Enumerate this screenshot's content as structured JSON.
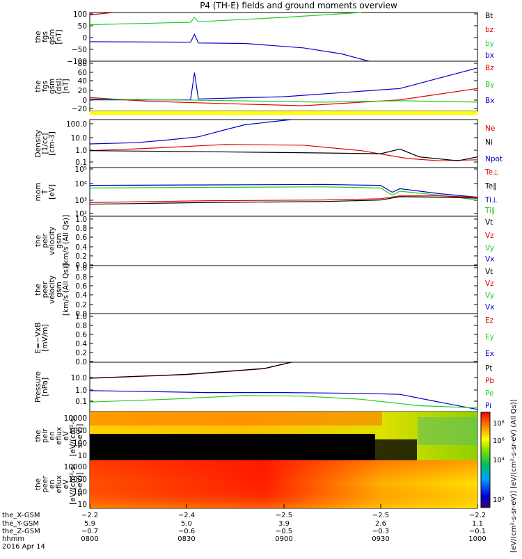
{
  "title": "P4 (TH-E) fields and ground moments overview",
  "colors": {
    "black": "#000000",
    "red": "#dd0000",
    "green": "#22cc22",
    "blue": "#0000cc",
    "yellow": "#ffff00"
  },
  "chart_data": [
    {
      "type": "line",
      "ylabel": [
        "the",
        "fgs",
        "gsm",
        "[nT]"
      ],
      "ylim": [
        -100,
        100
      ],
      "ticks": [
        "100",
        "50",
        "0",
        "−50",
        "−100"
      ],
      "legend": [
        {
          "name": "Bt",
          "color": "#000000"
        },
        {
          "name": "bz",
          "color": "#dd0000"
        },
        {
          "name": "by",
          "color": "#22cc22"
        },
        {
          "name": "bx",
          "color": "#0000cc"
        }
      ],
      "series": [
        {
          "name": "bz",
          "color": "#dd0000",
          "x": [
            0,
            0.06
          ],
          "y": [
            90,
            100
          ]
        },
        {
          "name": "by",
          "color": "#22cc22",
          "x": [
            0,
            0.26,
            0.27,
            0.28,
            0.5,
            0.7
          ],
          "y": [
            50,
            60,
            80,
            62,
            80,
            100
          ]
        },
        {
          "name": "bx",
          "color": "#0000cc",
          "x": [
            0,
            0.26,
            0.27,
            0.28,
            0.4,
            0.55,
            0.65,
            0.72
          ],
          "y": [
            -20,
            -22,
            10,
            -25,
            -27,
            -45,
            -70,
            -100
          ]
        }
      ]
    },
    {
      "type": "line",
      "ylabel": [
        "the",
        "fgs",
        "gsm",
        "(dsl)",
        "[nT]"
      ],
      "ylim": [
        -30,
        80
      ],
      "ticks": [
        "80",
        "60",
        "40",
        "20",
        "0",
        "−20"
      ],
      "legend": [
        {
          "name": "Bz",
          "color": "#dd0000"
        },
        {
          "name": "By",
          "color": "#22cc22"
        },
        {
          "name": "Bx",
          "color": "#0000cc"
        }
      ],
      "series": [
        {
          "name": "Bx",
          "color": "#0000cc",
          "x": [
            0,
            0.26,
            0.27,
            0.28,
            0.5,
            0.8,
            1.0
          ],
          "y": [
            -5,
            -5,
            55,
            -3,
            2,
            20,
            65
          ]
        },
        {
          "name": "Bz",
          "color": "#dd0000",
          "x": [
            0,
            0.15,
            0.3,
            0.55,
            0.8,
            1.0
          ],
          "y": [
            0,
            -8,
            -12,
            -18,
            -5,
            20
          ]
        },
        {
          "name": "By",
          "color": "#22cc22",
          "x": [
            0,
            0.3,
            0.6,
            0.8,
            1.0
          ],
          "y": [
            -3,
            -6,
            -10,
            -7,
            -10
          ]
        }
      ]
    },
    {
      "type": "line",
      "ylabel": [
        "Density",
        "[1/cc]",
        "[cm-3]"
      ],
      "scale": "log",
      "ylim": [
        0.03,
        150
      ],
      "ticks": [
        "100.0",
        "10.0",
        "1.0",
        "0.1"
      ],
      "legend": [
        {
          "name": "Ne",
          "color": "#dd0000"
        },
        {
          "name": "Ni",
          "color": "#000000"
        },
        {
          "name": "Npot",
          "color": "#0000cc"
        }
      ],
      "series": [
        {
          "name": "Npot",
          "color": "#0000cc",
          "x": [
            0,
            0.12,
            0.2,
            0.28,
            0.35,
            0.4,
            0.52
          ],
          "y": [
            2,
            2.5,
            4,
            7,
            25,
            60,
            150
          ]
        },
        {
          "name": "Ne",
          "color": "#dd0000",
          "x": [
            0,
            0.15,
            0.35,
            0.55,
            0.7,
            0.82,
            0.9,
            1.0
          ],
          "y": [
            0.6,
            0.9,
            1.8,
            1.6,
            0.6,
            0.15,
            0.1,
            0.12
          ]
        },
        {
          "name": "Ni",
          "color": "#000000",
          "x": [
            0,
            0.3,
            0.6,
            0.75,
            0.8,
            0.85,
            0.95,
            1.0
          ],
          "y": [
            0.6,
            0.5,
            0.4,
            0.35,
            0.8,
            0.2,
            0.1,
            0.2
          ]
        }
      ]
    },
    {
      "type": "line",
      "ylabel": [
        "mom",
        "T",
        "[eV]"
      ],
      "scale": "log",
      "ylim": [
        100,
        100000
      ],
      "ticks": [
        "10⁵",
        "10⁴",
        "10³",
        "10²"
      ],
      "legend": [
        {
          "name": "Te⊥",
          "color": "#dd0000"
        },
        {
          "name": "Te∥",
          "color": "#000000"
        },
        {
          "name": "Ti⊥",
          "color": "#0000cc"
        },
        {
          "name": "Ti∥",
          "color": "#22cc22"
        }
      ],
      "series": [
        {
          "name": "Ti⊥",
          "color": "#0000cc",
          "x": [
            0,
            0.3,
            0.6,
            0.75,
            0.78,
            0.8,
            0.9,
            1.0
          ],
          "y": [
            8000,
            8500,
            9000,
            8000,
            3000,
            5000,
            2500,
            1500
          ]
        },
        {
          "name": "Ti∥",
          "color": "#22cc22",
          "x": [
            0,
            0.3,
            0.6,
            0.75,
            0.78,
            0.8,
            0.9,
            1.0
          ],
          "y": [
            5500,
            6000,
            6500,
            5500,
            2000,
            3500,
            2000,
            1000
          ]
        },
        {
          "name": "Te⊥",
          "color": "#dd0000",
          "x": [
            0,
            0.3,
            0.6,
            0.75,
            0.8,
            0.9,
            1.0
          ],
          "y": [
            700,
            900,
            1000,
            1200,
            1800,
            1800,
            1500
          ]
        },
        {
          "name": "Te∥",
          "color": "#000000",
          "x": [
            0,
            0.3,
            0.6,
            0.75,
            0.8,
            0.9,
            1.0
          ],
          "y": [
            550,
            700,
            800,
            1000,
            1600,
            1500,
            1300
          ]
        }
      ]
    },
    {
      "type": "line",
      "ylabel": [
        "the",
        "peir",
        "velocity",
        "gsm",
        "[km/s (All Qs)]"
      ],
      "ylim": [
        0,
        1
      ],
      "ticks": [
        "1.0",
        "0.8",
        "0.6",
        "0.4",
        "0.2",
        "0.0"
      ],
      "legend": [
        {
          "name": "Vt",
          "color": "#000000"
        },
        {
          "name": "Vz",
          "color": "#dd0000"
        },
        {
          "name": "Vy",
          "color": "#22cc22"
        },
        {
          "name": "Vx",
          "color": "#0000cc"
        }
      ],
      "series": []
    },
    {
      "type": "line",
      "ylabel": [
        "the",
        "peer",
        "velocity",
        "gsm",
        "[km/s (All Qs)]"
      ],
      "ylim": [
        0,
        1
      ],
      "ticks": [
        "1.0",
        "0.8",
        "0.6",
        "0.4",
        "0.2",
        "0.0"
      ],
      "legend": [
        {
          "name": "Vt",
          "color": "#000000"
        },
        {
          "name": "Vz",
          "color": "#dd0000"
        },
        {
          "name": "Vy",
          "color": "#22cc22"
        },
        {
          "name": "Vx",
          "color": "#0000cc"
        }
      ],
      "series": []
    },
    {
      "type": "line",
      "ylabel": [
        "E=−VxB",
        "[mV/m]"
      ],
      "ylim": [
        0,
        1
      ],
      "ticks": [
        "1.0",
        "0.8",
        "0.6",
        "0.4",
        "0.2",
        "0.0"
      ],
      "legend": [
        {
          "name": "Ez",
          "color": "#dd0000"
        },
        {
          "name": "Ey",
          "color": "#22cc22"
        },
        {
          "name": "Ex",
          "color": "#0000cc"
        }
      ],
      "series": []
    },
    {
      "type": "line",
      "ylabel": [
        "Pressure",
        "[nPa]"
      ],
      "scale": "log",
      "ylim": [
        0.01,
        100
      ],
      "ticks": [
        "10.0",
        "1.0",
        "0.1"
      ],
      "legend": [
        {
          "name": "Pt",
          "color": "#000000"
        },
        {
          "name": "Pb",
          "color": "#dd0000"
        },
        {
          "name": "Pe",
          "color": "#22cc22"
        },
        {
          "name": "Pi",
          "color": "#0000cc"
        }
      ],
      "series": [
        {
          "name": "Pb",
          "color": "#dd0000",
          "x": [
            0,
            0.25,
            0.45,
            0.52
          ],
          "y": [
            5,
            10,
            30,
            100
          ]
        },
        {
          "name": "Pt",
          "color": "#000000",
          "x": [
            0,
            0.25,
            0.45,
            0.52
          ],
          "y": [
            5.2,
            10.5,
            31,
            100
          ]
        },
        {
          "name": "Pi",
          "color": "#0000cc",
          "x": [
            0,
            0.1,
            0.3,
            0.5,
            0.7,
            0.8,
            0.88,
            1.0
          ],
          "y": [
            0.5,
            0.45,
            0.35,
            0.35,
            0.3,
            0.25,
            0.08,
            0.015
          ]
        },
        {
          "name": "Pe",
          "color": "#22cc22",
          "x": [
            0,
            0.2,
            0.4,
            0.55,
            0.7,
            0.85,
            1.0
          ],
          "y": [
            0.06,
            0.1,
            0.2,
            0.18,
            0.1,
            0.03,
            0.02
          ]
        }
      ]
    },
    {
      "type": "heatmap",
      "ylabel": [
        "the",
        "peir",
        "en",
        "eflux",
        "eV",
        "[eV/(cm²-s-",
        "sr-eV)]"
      ],
      "ticks": [
        "10000",
        "1000",
        "100",
        "10"
      ]
    },
    {
      "type": "heatmap",
      "ylabel": [
        "the",
        "peer",
        "en",
        "eflux",
        "eV",
        "[eV/(cm²-s-",
        "sr-eV)]"
      ],
      "ticks": [
        "10000",
        "1000",
        "100",
        "10"
      ]
    }
  ],
  "colorbar": {
    "label": "[eV/(cm²-s-sr-eV)] [eV/(cm²-s-sr-eV) (All Qs)]",
    "ticks": [
      "10⁸",
      "10⁶",
      "10⁴",
      "10²"
    ]
  },
  "xaxis": {
    "row_labels": [
      "the_X-GSM",
      "the_Y-GSM",
      "the_Z-GSM",
      "hhmm",
      "2016 Apr 14"
    ],
    "columns": [
      [
        "−2.2",
        "5.9",
        "−0.7",
        "0800"
      ],
      [
        "−2.4",
        "5.0",
        "−0.6",
        "0830"
      ],
      [
        "−2.5",
        "3.9",
        "−0.5",
        "0900"
      ],
      [
        "−2.5",
        "2.6",
        "−0.3",
        "0930"
      ],
      [
        "−2.2",
        "1.1",
        "−0.1",
        "1000"
      ]
    ]
  }
}
